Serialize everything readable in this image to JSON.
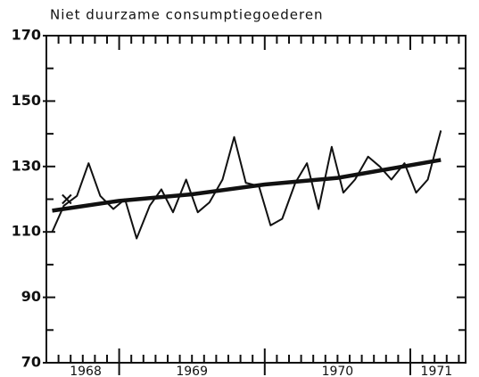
{
  "chart_data": {
    "type": "line",
    "title": "Niet duurzame consumptiegoederen",
    "series": [
      {
        "color": "#111111",
        "x": [
          1968.54,
          1968.62,
          1968.71,
          1968.79,
          1968.87,
          1968.96,
          1969.04,
          1969.12,
          1969.21,
          1969.29,
          1969.37,
          1969.46,
          1969.54,
          1969.62,
          1969.71,
          1969.79,
          1969.87,
          1969.96,
          1970.04,
          1970.12,
          1970.21,
          1970.29,
          1970.37,
          1970.46,
          1970.54,
          1970.62,
          1970.71,
          1970.79,
          1970.87,
          1970.96,
          1971.04,
          1971.12,
          1971.21
        ],
        "values": [
          110,
          118,
          121,
          131,
          121,
          117,
          120,
          108,
          118,
          123,
          116,
          126,
          116,
          119,
          126,
          139,
          125,
          124,
          112,
          114,
          125,
          131,
          117,
          136,
          122,
          126,
          133,
          130,
          126,
          131,
          122,
          126,
          141
        ]
      },
      {
        "color": "#111111",
        "x": [
          1968.54,
          1969.0,
          1969.5,
          1970.0,
          1970.5,
          1971.21
        ],
        "values": [
          116.5,
          119.5,
          121.5,
          124.5,
          126.5,
          132
        ]
      }
    ],
    "marker": {
      "x": 1968.64,
      "value": 120
    },
    "xlim": [
      1968.5,
      1971.38
    ],
    "xticks": [
      {
        "value": 1968.77,
        "label": "1968"
      },
      {
        "value": 1969.5,
        "label": "1969"
      },
      {
        "value": 1970.5,
        "label": "1970"
      },
      {
        "value": 1971.18,
        "label": "1971"
      }
    ],
    "ylim": [
      70,
      170
    ],
    "yticks": [
      70,
      90,
      110,
      130,
      150,
      170
    ],
    "yminor": [
      80,
      100,
      120,
      140,
      160
    ],
    "grid": false
  }
}
